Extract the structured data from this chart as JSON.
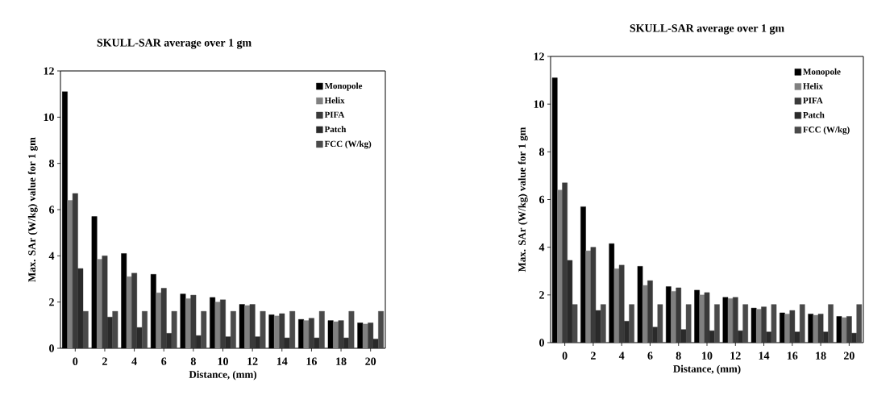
{
  "chart_data": [
    {
      "type": "bar",
      "title": "SKULL-SAR average over 1 gm",
      "xlabel": "Distance, (mm)",
      "ylabel": "Max. SAr (W/kg) value for 1 gm",
      "categories": [
        "0",
        "2",
        "4",
        "6",
        "8",
        "10",
        "12",
        "14",
        "16",
        "18",
        "20"
      ],
      "series": [
        {
          "name": "Monopole",
          "color": "#000000",
          "values": [
            11.1,
            5.7,
            4.1,
            3.2,
            2.35,
            2.2,
            1.9,
            1.45,
            1.25,
            1.2,
            1.1
          ]
        },
        {
          "name": "Helix",
          "color": "#808080",
          "values": [
            6.4,
            3.85,
            3.1,
            2.4,
            2.15,
            2.0,
            1.85,
            1.4,
            1.2,
            1.15,
            1.05
          ]
        },
        {
          "name": "PIFA",
          "color": "#3a3a3a",
          "values": [
            6.7,
            4.0,
            3.25,
            2.6,
            2.3,
            2.1,
            1.9,
            1.5,
            1.3,
            1.2,
            1.1
          ]
        },
        {
          "name": "Patch",
          "color": "#2a2a2a",
          "values": [
            3.45,
            1.35,
            0.9,
            0.65,
            0.55,
            0.5,
            0.5,
            0.45,
            0.45,
            0.45,
            0.4
          ]
        },
        {
          "name": "FCC (W/kg)",
          "color": "#4a4a4a",
          "values": [
            1.6,
            1.6,
            1.6,
            1.6,
            1.6,
            1.6,
            1.6,
            1.6,
            1.6,
            1.6,
            1.6
          ]
        }
      ],
      "ylim": [
        0,
        12
      ],
      "yticks": [
        0,
        2,
        4,
        6,
        8,
        10,
        12
      ],
      "legend": "top right"
    },
    {
      "type": "bar",
      "title": "SKULL-SAR average over 1 gm",
      "xlabel": "Distance, (mm)",
      "ylabel": "Max. SAr (W/kg) value for 1 gm",
      "categories": [
        "0",
        "2",
        "4",
        "6",
        "8",
        "10",
        "12",
        "14",
        "16",
        "18",
        "20"
      ],
      "series": [
        {
          "name": "Monopole",
          "color": "#000000",
          "values": [
            11.1,
            5.7,
            4.15,
            3.2,
            2.35,
            2.2,
            1.9,
            1.45,
            1.25,
            1.2,
            1.1
          ]
        },
        {
          "name": "Helix",
          "color": "#808080",
          "values": [
            6.4,
            3.85,
            3.1,
            2.4,
            2.15,
            2.0,
            1.85,
            1.4,
            1.2,
            1.15,
            1.05
          ]
        },
        {
          "name": "PIFA",
          "color": "#3a3a3a",
          "values": [
            6.7,
            4.0,
            3.25,
            2.6,
            2.3,
            2.1,
            1.9,
            1.5,
            1.35,
            1.2,
            1.1
          ]
        },
        {
          "name": "Patch",
          "color": "#2a2a2a",
          "values": [
            3.45,
            1.35,
            0.9,
            0.65,
            0.55,
            0.5,
            0.5,
            0.45,
            0.45,
            0.45,
            0.4
          ]
        },
        {
          "name": "FCC (W/kg)",
          "color": "#4a4a4a",
          "values": [
            1.6,
            1.6,
            1.6,
            1.6,
            1.6,
            1.6,
            1.6,
            1.6,
            1.6,
            1.6,
            1.6
          ]
        }
      ],
      "ylim": [
        0,
        12
      ],
      "yticks": [
        0,
        2,
        4,
        6,
        8,
        10,
        12
      ],
      "legend": "top right"
    }
  ]
}
